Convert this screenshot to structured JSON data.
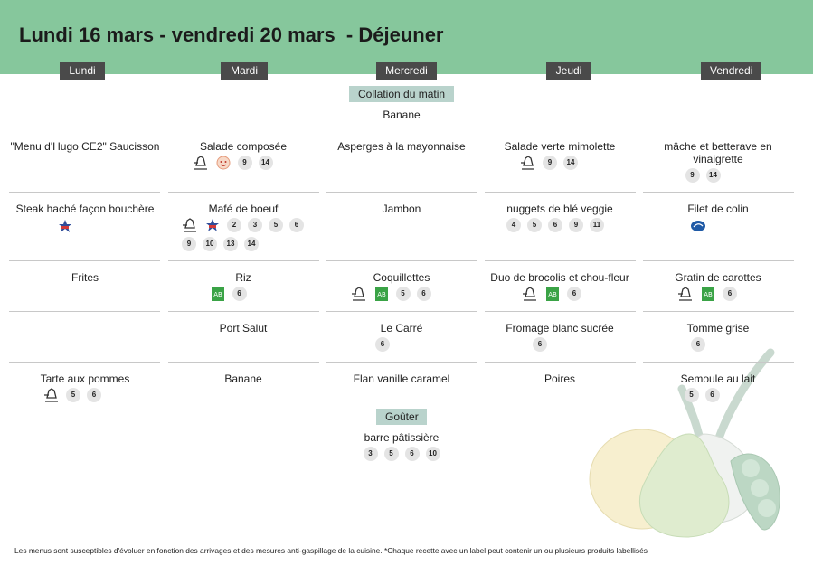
{
  "title": "Lundi 16 mars - vendredi 20 mars  - Déjeuner",
  "days": [
    "Lundi",
    "Mardi",
    "Mercredi",
    "Jeudi",
    "Vendredi"
  ],
  "collation": {
    "label": "Collation du matin",
    "item": "Banane"
  },
  "gouter": {
    "label": "Goûter",
    "item": "barre pâtissière",
    "tags": [
      "3",
      "5",
      "6",
      "10"
    ]
  },
  "menu": {
    "lundi": {
      "entree": {
        "name": "\"Menu d'Hugo CE2\" Saucisson",
        "tags": []
      },
      "plat": {
        "name": "Steak haché façon bouchère",
        "icons": [
          "french-meat-label-icon"
        ],
        "tags": []
      },
      "garniture": {
        "name": "Frites",
        "tags": []
      },
      "dessert": {
        "name": "Tarte aux pommes",
        "icons": [
          "homemade-chef-icon"
        ],
        "tags": [
          "5",
          "6"
        ]
      }
    },
    "mardi": {
      "entree": {
        "name": "Salade composée",
        "icons": [
          "homemade-chef-icon",
          "kids-choice-icon"
        ],
        "tags": [
          "9",
          "14"
        ]
      },
      "plat": {
        "name": "Mafé de boeuf",
        "icons": [
          "homemade-chef-icon",
          "french-meat-label-icon"
        ],
        "tags": [
          "2",
          "3",
          "5",
          "6",
          "9",
          "10",
          "13",
          "14"
        ]
      },
      "garniture": {
        "name": "Riz",
        "icons": [
          "organic-ab-icon"
        ],
        "tags": [
          "6"
        ]
      },
      "fromage": {
        "name": "Port Salut",
        "tags": []
      },
      "dessert": {
        "name": "Banane",
        "tags": []
      }
    },
    "mercredi": {
      "entree": {
        "name": "Asperges à la mayonnaise",
        "tags": []
      },
      "plat": {
        "name": "Jambon",
        "tags": []
      },
      "garniture": {
        "name": "Coquillettes",
        "icons": [
          "homemade-chef-icon",
          "organic-ab-icon"
        ],
        "tags": [
          "5",
          "6"
        ]
      },
      "fromage": {
        "name": "Le Carré",
        "tags": [
          "6"
        ]
      },
      "dessert": {
        "name": "Flan vanille caramel",
        "tags": []
      }
    },
    "jeudi": {
      "entree": {
        "name": "Salade verte mimolette",
        "icons": [
          "homemade-chef-icon"
        ],
        "tags": [
          "9",
          "14"
        ]
      },
      "plat": {
        "name": "nuggets de blé veggie",
        "tags": [
          "4",
          "5",
          "6",
          "9",
          "11"
        ]
      },
      "garniture": {
        "name": "Duo de brocolis et chou-fleur",
        "icons": [
          "homemade-chef-icon",
          "organic-ab-icon"
        ],
        "tags": [
          "6"
        ]
      },
      "fromage": {
        "name": "Fromage blanc sucrée",
        "tags": [
          "6"
        ]
      },
      "dessert": {
        "name": "Poires",
        "tags": []
      }
    },
    "vendredi": {
      "entree": {
        "name": "mâche et betterave en vinaigrette",
        "tags": [
          "9",
          "14"
        ]
      },
      "plat": {
        "name": "Filet de colin",
        "icons": [
          "msc-fish-label-icon"
        ],
        "tags": []
      },
      "garniture": {
        "name": "Gratin de carottes",
        "icons": [
          "homemade-chef-icon",
          "organic-ab-icon"
        ],
        "tags": [
          "6"
        ]
      },
      "fromage": {
        "name": "Tomme grise",
        "tags": [
          "6"
        ]
      },
      "dessert": {
        "name": "Semoule au lait",
        "tags": [
          "5",
          "6"
        ]
      }
    }
  },
  "footer": "Les menus sont susceptibles d'évoluer en fonction des arrivages et des mesures anti-gaspillage de la cuisine. *Chaque recette avec un label peut contenir un ou plusieurs produits labellisés",
  "colors": {
    "header": "#86c79c",
    "day_label": "#4a4a4a",
    "pill": "#b9d3cc",
    "tag": "#e4e4e4"
  }
}
